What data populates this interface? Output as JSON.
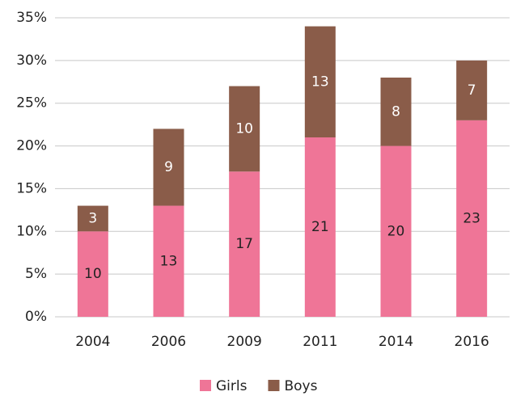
{
  "chart_data": {
    "type": "stacked_bar",
    "categories": [
      "2004",
      "2006",
      "2009",
      "2011",
      "2014",
      "2016"
    ],
    "series": [
      {
        "name": "Girls",
        "color": "#ef7597",
        "values": [
          10,
          13,
          17,
          21,
          20,
          23
        ]
      },
      {
        "name": "Boys",
        "color": "#8a5c49",
        "values": [
          3,
          9,
          10,
          13,
          8,
          7
        ]
      }
    ],
    "ylim": [
      0,
      35
    ],
    "yticks": [
      {
        "value": 0,
        "label": "0%"
      },
      {
        "value": 5,
        "label": "5%"
      },
      {
        "value": 10,
        "label": "10%"
      },
      {
        "value": 15,
        "label": "15%"
      },
      {
        "value": 20,
        "label": "20%"
      },
      {
        "value": 25,
        "label": "25%"
      },
      {
        "value": 30,
        "label": "30%"
      },
      {
        "value": 35,
        "label": "35%"
      }
    ],
    "grid": true,
    "legend": "bottom"
  }
}
